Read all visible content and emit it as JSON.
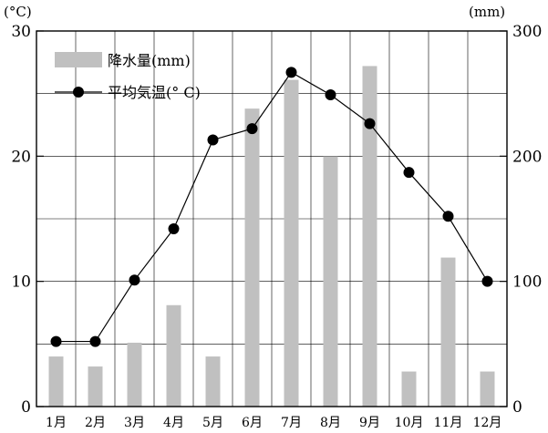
{
  "chart_data": {
    "type": "bar+line",
    "categories": [
      "1月",
      "2月",
      "3月",
      "4月",
      "5月",
      "6月",
      "7月",
      "8月",
      "9月",
      "10月",
      "11月",
      "12月"
    ],
    "series": [
      {
        "name": "降水量(mm)",
        "type": "bar",
        "axis": "right",
        "color": "#c0c0c0",
        "values": [
          40,
          32,
          51,
          81,
          40,
          238,
          261,
          200,
          272,
          28,
          119,
          28
        ]
      },
      {
        "name": "平均気温(° C)",
        "type": "line",
        "axis": "left",
        "color": "#000000",
        "values": [
          5.2,
          5.2,
          10.1,
          14.2,
          21.3,
          22.2,
          26.7,
          24.9,
          22.6,
          18.7,
          15.2,
          10.0
        ]
      }
    ],
    "y_left": {
      "label": "(°C)",
      "ticks": [
        "0",
        "10",
        "20",
        "30"
      ],
      "range": [
        0,
        30
      ]
    },
    "y_right": {
      "label": "(mm)",
      "ticks": [
        "0",
        "100",
        "200",
        "300"
      ],
      "range": [
        0,
        300
      ]
    },
    "grid": true,
    "legend_position": "top-left"
  }
}
